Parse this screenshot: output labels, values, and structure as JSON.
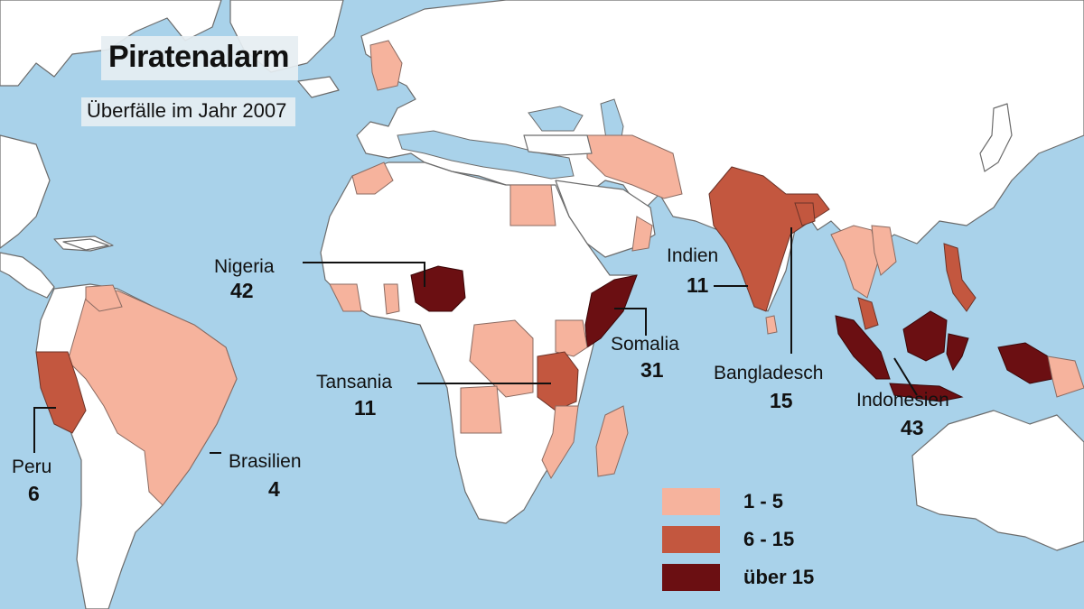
{
  "title": "Piratenalarm",
  "subtitle": "Überfälle im Jahr 2007",
  "colors": {
    "ocean": "#a9d2ea",
    "land": "#ffffff",
    "level_1": "#f6b39d",
    "level_2": "#c3573f",
    "level_3": "#6b0f12"
  },
  "legend": [
    {
      "label": "1 - 5",
      "color": "#f6b39d"
    },
    {
      "label": "6 - 15",
      "color": "#c3573f"
    },
    {
      "label": "über 15",
      "color": "#6b0f12"
    }
  ],
  "countries": {
    "nigeria": {
      "name": "Nigeria",
      "attacks": "42"
    },
    "indien": {
      "name": "Indien",
      "attacks": "11"
    },
    "somalia": {
      "name": "Somalia",
      "attacks": "31"
    },
    "tansania": {
      "name": "Tansania",
      "attacks": "11"
    },
    "bangladesch": {
      "name": "Bangladesch",
      "attacks": "15"
    },
    "indonesien": {
      "name": "Indonesien",
      "attacks": "43"
    },
    "peru": {
      "name": "Peru",
      "attacks": "6"
    },
    "brasilien": {
      "name": "Brasilien",
      "attacks": "4"
    }
  }
}
